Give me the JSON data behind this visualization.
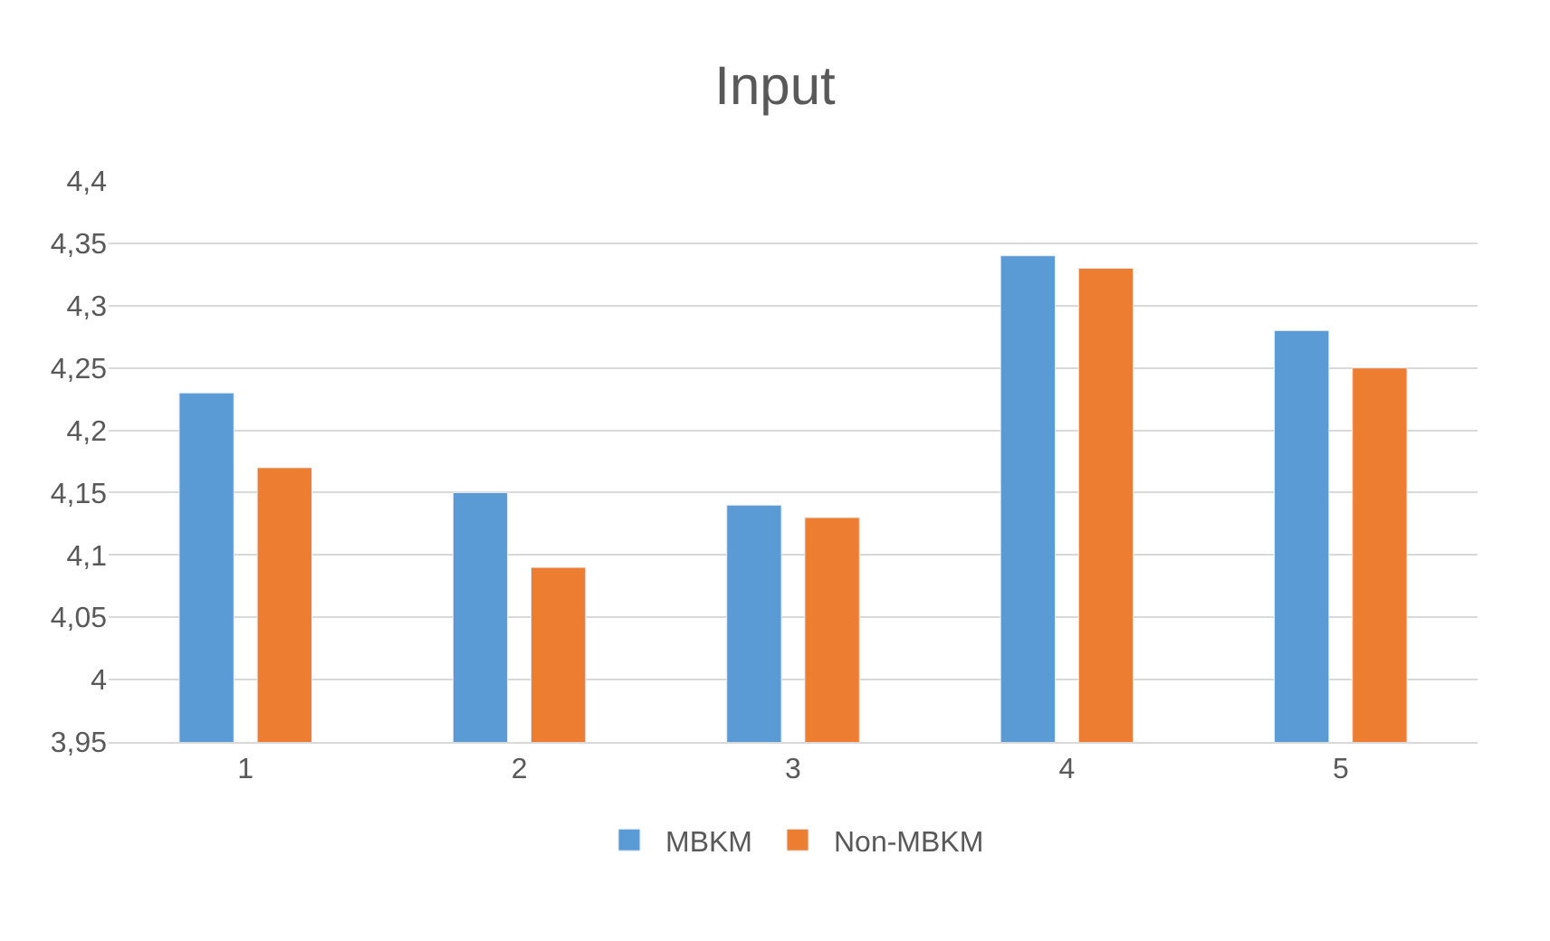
{
  "chart_data": {
    "type": "bar",
    "title": "Input",
    "categories": [
      "1",
      "2",
      "3",
      "4",
      "5"
    ],
    "series": [
      {
        "name": "MBKM",
        "color": "#5b9bd5",
        "values": [
          4.23,
          4.15,
          4.14,
          4.34,
          4.28
        ]
      },
      {
        "name": "Non-MBKM",
        "color": "#ed7d31",
        "values": [
          4.17,
          4.09,
          4.13,
          4.33,
          4.25
        ]
      }
    ],
    "ylim": [
      3.95,
      4.4
    ],
    "yticks": [
      {
        "value": 3.95,
        "label": "3,95"
      },
      {
        "value": 4,
        "label": "4"
      },
      {
        "value": 4.05,
        "label": "4,05"
      },
      {
        "value": 4.1,
        "label": "4,1"
      },
      {
        "value": 4.15,
        "label": "4,15"
      },
      {
        "value": 4.2,
        "label": "4,2"
      },
      {
        "value": 4.25,
        "label": "4,25"
      },
      {
        "value": 4.3,
        "label": "4,3"
      },
      {
        "value": 4.35,
        "label": "4,35"
      },
      {
        "value": 4.4,
        "label": "4,4"
      }
    ],
    "grid": "y",
    "legend": "bottom"
  }
}
